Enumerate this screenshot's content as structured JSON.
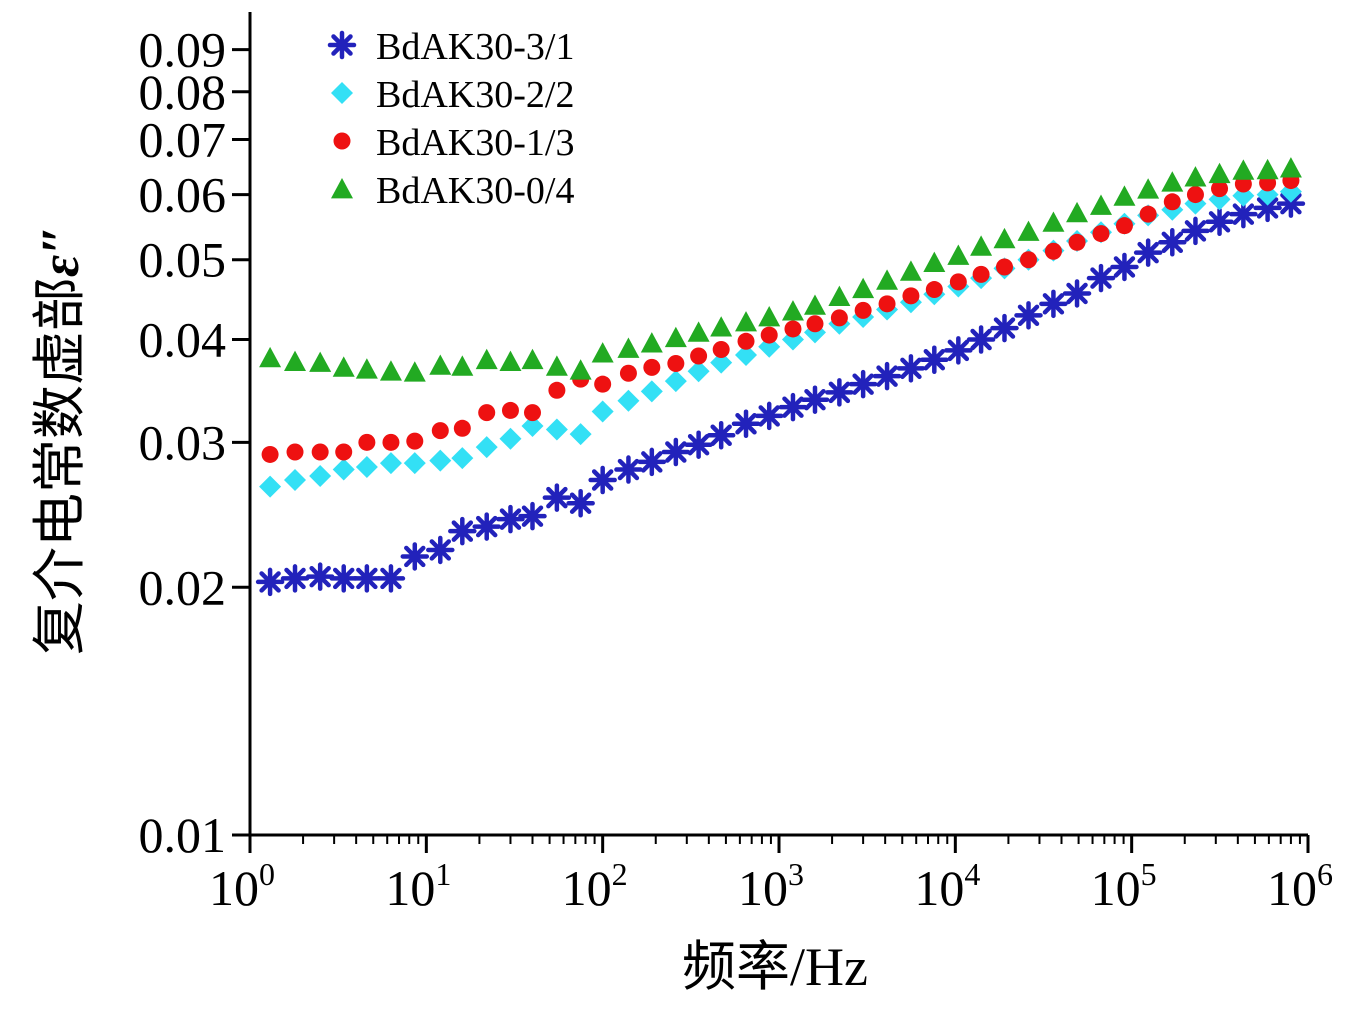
{
  "chart_data": {
    "type": "scatter",
    "xscale": "log",
    "yscale": "log",
    "xlim": [
      1,
      1000000
    ],
    "ylim": [
      0.01,
      0.1
    ],
    "xlabel": "频率/Hz",
    "ylabel": "复介电常数虚部",
    "ylabel_symbol": "ε″",
    "xticks": [
      {
        "base": "10",
        "exp": "0",
        "value": 1
      },
      {
        "base": "10",
        "exp": "1",
        "value": 10
      },
      {
        "base": "10",
        "exp": "2",
        "value": 100
      },
      {
        "base": "10",
        "exp": "3",
        "value": 1000
      },
      {
        "base": "10",
        "exp": "4",
        "value": 10000
      },
      {
        "base": "10",
        "exp": "5",
        "value": 100000
      },
      {
        "base": "10",
        "exp": "6",
        "value": 1000000
      }
    ],
    "yticks": [
      {
        "label": "0.01",
        "value": 0.01
      },
      {
        "label": "0.02",
        "value": 0.02
      },
      {
        "label": "0.03",
        "value": 0.03
      },
      {
        "label": "0.04",
        "value": 0.04
      },
      {
        "label": "0.05",
        "value": 0.05
      },
      {
        "label": "0.06",
        "value": 0.06
      },
      {
        "label": "0.07",
        "value": 0.07
      },
      {
        "label": "0.08",
        "value": 0.08
      },
      {
        "label": "0.09",
        "value": 0.09
      }
    ],
    "legend_position": "top-left",
    "grid": false,
    "x": [
      1.3,
      1.8,
      2.5,
      3.4,
      4.6,
      6.3,
      8.6,
      12,
      16,
      22,
      30,
      40,
      55,
      75,
      100,
      140,
      190,
      260,
      350,
      470,
      650,
      880,
      1200,
      1600,
      2200,
      3000,
      4100,
      5600,
      7600,
      10400,
      14000,
      19000,
      26000,
      36000,
      49000,
      67000,
      91000,
      124000,
      170000,
      230000,
      315000,
      430000,
      590000,
      800000
    ],
    "series": [
      {
        "name": "BdAK30-3/1",
        "marker": "asterisk",
        "color": "#2222bb",
        "values": [
          0.0203,
          0.0205,
          0.0206,
          0.0205,
          0.0205,
          0.0205,
          0.0218,
          0.0222,
          0.0234,
          0.0237,
          0.0242,
          0.0244,
          0.0257,
          0.0253,
          0.027,
          0.0278,
          0.0284,
          0.0292,
          0.0298,
          0.0306,
          0.0316,
          0.0323,
          0.0331,
          0.0338,
          0.0345,
          0.0353,
          0.0361,
          0.0369,
          0.0378,
          0.0388,
          0.04,
          0.0413,
          0.0428,
          0.0442,
          0.0455,
          0.0475,
          0.049,
          0.051,
          0.0525,
          0.0542,
          0.0556,
          0.0568,
          0.0578,
          0.0585
        ]
      },
      {
        "name": "BdAK30-2/2",
        "marker": "diamond",
        "color": "#33e0f5",
        "values": [
          0.0265,
          0.027,
          0.0273,
          0.0278,
          0.028,
          0.0283,
          0.0283,
          0.0285,
          0.0287,
          0.0296,
          0.0303,
          0.0314,
          0.0311,
          0.0307,
          0.0327,
          0.0337,
          0.0346,
          0.0356,
          0.0366,
          0.0375,
          0.0383,
          0.0392,
          0.04,
          0.0408,
          0.0418,
          0.0426,
          0.0435,
          0.0444,
          0.0454,
          0.0464,
          0.0475,
          0.0488,
          0.05,
          0.0513,
          0.0527,
          0.054,
          0.0553,
          0.0566,
          0.0575,
          0.0585,
          0.0592,
          0.0598,
          0.06,
          0.0605
        ]
      },
      {
        "name": "BdAK30-1/3",
        "marker": "circle",
        "color": "#ee1111",
        "values": [
          0.029,
          0.0292,
          0.0292,
          0.0292,
          0.03,
          0.03,
          0.0301,
          0.031,
          0.0312,
          0.0326,
          0.0328,
          0.0326,
          0.0347,
          0.0358,
          0.0353,
          0.0364,
          0.037,
          0.0374,
          0.0382,
          0.0389,
          0.0398,
          0.0405,
          0.0412,
          0.0418,
          0.0425,
          0.0434,
          0.0442,
          0.0452,
          0.046,
          0.047,
          0.048,
          0.049,
          0.05,
          0.0512,
          0.0525,
          0.0538,
          0.055,
          0.0568,
          0.0588,
          0.06,
          0.061,
          0.0618,
          0.062,
          0.0624
        ]
      },
      {
        "name": "BdAK30-0/4",
        "marker": "triangle",
        "color": "#22aa22",
        "values": [
          0.038,
          0.0376,
          0.0375,
          0.037,
          0.0368,
          0.0366,
          0.0365,
          0.0372,
          0.0371,
          0.0378,
          0.0376,
          0.0378,
          0.0371,
          0.0367,
          0.0385,
          0.039,
          0.0396,
          0.0402,
          0.0408,
          0.0414,
          0.042,
          0.0426,
          0.0433,
          0.044,
          0.0451,
          0.0461,
          0.0472,
          0.0484,
          0.0496,
          0.0506,
          0.0519,
          0.053,
          0.0541,
          0.0555,
          0.057,
          0.0582,
          0.0597,
          0.0609,
          0.0621,
          0.063,
          0.0636,
          0.0642,
          0.0643,
          0.0646
        ]
      }
    ]
  }
}
